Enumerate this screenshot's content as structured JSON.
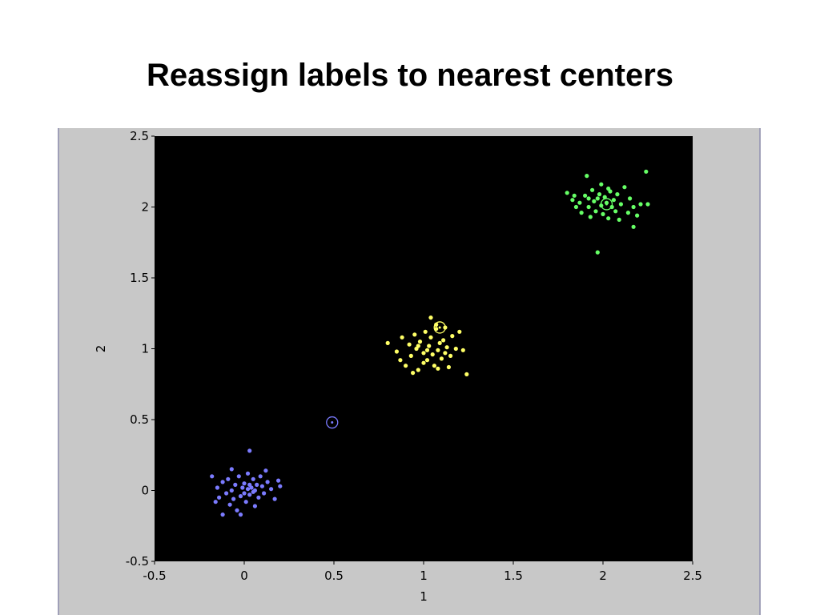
{
  "slide": {
    "title": "Reassign labels to nearest centers"
  },
  "colors": {
    "panel_bg": "#c8c8c8",
    "axes_bg": "#000000",
    "cluster_blue": "#7b7bff",
    "cluster_yellow": "#ffff66",
    "cluster_green": "#66ff66"
  },
  "chart_data": {
    "type": "scatter",
    "title": "",
    "xlabel": "1",
    "ylabel": "2",
    "xlim": [
      -0.5,
      2.5
    ],
    "ylim": [
      -0.5,
      2.5
    ],
    "xticks": [
      -0.5,
      0,
      0.5,
      1,
      1.5,
      2,
      2.5
    ],
    "yticks": [
      -0.5,
      0,
      0.5,
      1,
      1.5,
      2,
      2.5
    ],
    "xtick_labels": [
      "-0.5",
      "0",
      "0.5",
      "1",
      "1.5",
      "2",
      "2.5"
    ],
    "ytick_labels": [
      "-0.5",
      "0",
      "0.5",
      "1",
      "1.5",
      "2",
      "2.5"
    ],
    "grid": false,
    "legend": "none",
    "series": [
      {
        "color": "#7b7bff",
        "points": [
          [
            -0.18,
            0.1
          ],
          [
            -0.15,
            0.02
          ],
          [
            -0.14,
            -0.05
          ],
          [
            -0.12,
            0.06
          ],
          [
            -0.1,
            -0.02
          ],
          [
            -0.09,
            0.08
          ],
          [
            -0.08,
            -0.1
          ],
          [
            -0.07,
            0.0
          ],
          [
            -0.06,
            -0.06
          ],
          [
            -0.05,
            0.04
          ],
          [
            -0.04,
            -0.14
          ],
          [
            -0.03,
            0.1
          ],
          [
            -0.02,
            -0.04
          ],
          [
            -0.01,
            0.02
          ],
          [
            0.0,
            0.05
          ],
          [
            0.0,
            -0.02
          ],
          [
            0.01,
            -0.08
          ],
          [
            0.02,
            0.01
          ],
          [
            0.02,
            0.12
          ],
          [
            0.03,
            -0.03
          ],
          [
            0.03,
            0.04
          ],
          [
            0.04,
            0.02
          ],
          [
            0.05,
            -0.01
          ],
          [
            0.05,
            0.08
          ],
          [
            0.06,
            0.0
          ],
          [
            0.07,
            0.04
          ],
          [
            0.08,
            -0.05
          ],
          [
            0.09,
            0.1
          ],
          [
            0.1,
            0.03
          ],
          [
            0.11,
            -0.02
          ],
          [
            0.13,
            0.06
          ],
          [
            0.15,
            0.01
          ],
          [
            0.17,
            -0.06
          ],
          [
            0.19,
            0.07
          ],
          [
            0.2,
            0.03
          ],
          [
            0.03,
            0.28
          ],
          [
            -0.07,
            0.15
          ],
          [
            -0.02,
            -0.17
          ],
          [
            0.12,
            0.14
          ],
          [
            -0.16,
            -0.08
          ],
          [
            -0.12,
            -0.17
          ],
          [
            0.06,
            -0.11
          ]
        ]
      },
      {
        "color": "#ffff66",
        "points": [
          [
            0.8,
            1.04
          ],
          [
            0.85,
            0.98
          ],
          [
            0.87,
            0.92
          ],
          [
            0.88,
            1.08
          ],
          [
            0.9,
            0.88
          ],
          [
            0.92,
            1.03
          ],
          [
            0.93,
            0.95
          ],
          [
            0.95,
            1.1
          ],
          [
            0.96,
            1.0
          ],
          [
            0.97,
            0.85
          ],
          [
            0.98,
            1.05
          ],
          [
            1.0,
            0.97
          ],
          [
            1.01,
            1.12
          ],
          [
            1.02,
            0.92
          ],
          [
            1.03,
            1.02
          ],
          [
            1.04,
            1.08
          ],
          [
            1.05,
            0.96
          ],
          [
            1.06,
            0.88
          ],
          [
            1.07,
            1.14
          ],
          [
            1.08,
            0.99
          ],
          [
            1.09,
            1.04
          ],
          [
            1.1,
            0.93
          ],
          [
            1.11,
            1.06
          ],
          [
            1.12,
            0.97
          ],
          [
            1.13,
            1.01
          ],
          [
            1.14,
            0.87
          ],
          [
            1.15,
            0.95
          ],
          [
            1.16,
            1.09
          ],
          [
            1.18,
            1.0
          ],
          [
            1.2,
            1.12
          ],
          [
            1.22,
            0.99
          ],
          [
            1.24,
            0.82
          ],
          [
            1.04,
            1.22
          ],
          [
            1.07,
            1.17
          ],
          [
            0.94,
            0.83
          ],
          [
            1.0,
            0.9
          ],
          [
            1.08,
            0.86
          ],
          [
            1.12,
            1.15
          ],
          [
            1.02,
            0.99
          ],
          [
            0.97,
            1.02
          ]
        ]
      },
      {
        "color": "#66ff66",
        "points": [
          [
            1.8,
            2.1
          ],
          [
            1.83,
            2.05
          ],
          [
            1.85,
            2.0
          ],
          [
            1.87,
            2.03
          ],
          [
            1.88,
            1.96
          ],
          [
            1.9,
            2.08
          ],
          [
            1.91,
            2.22
          ],
          [
            1.92,
            2.0
          ],
          [
            1.93,
            1.93
          ],
          [
            1.94,
            2.12
          ],
          [
            1.95,
            2.04
          ],
          [
            1.96,
            1.97
          ],
          [
            1.97,
            2.06
          ],
          [
            1.98,
            2.09
          ],
          [
            1.99,
            2.01
          ],
          [
            2.0,
            1.95
          ],
          [
            2.01,
            2.07
          ],
          [
            2.02,
            2.03
          ],
          [
            2.03,
            1.92
          ],
          [
            2.04,
            2.11
          ],
          [
            2.05,
            2.0
          ],
          [
            2.06,
            2.05
          ],
          [
            2.07,
            1.97
          ],
          [
            2.08,
            2.09
          ],
          [
            2.1,
            2.02
          ],
          [
            2.12,
            2.14
          ],
          [
            2.14,
            1.96
          ],
          [
            2.15,
            2.06
          ],
          [
            2.17,
            2.0
          ],
          [
            2.19,
            1.94
          ],
          [
            2.21,
            2.02
          ],
          [
            2.24,
            2.25
          ],
          [
            2.25,
            2.02
          ],
          [
            1.97,
            1.68
          ],
          [
            2.17,
            1.86
          ],
          [
            1.84,
            2.08
          ],
          [
            2.03,
            2.13
          ],
          [
            1.92,
            2.06
          ],
          [
            2.09,
            1.91
          ],
          [
            1.99,
            2.16
          ]
        ]
      }
    ],
    "centers": [
      {
        "x": 0.49,
        "y": 0.48,
        "color": "#7b7bff"
      },
      {
        "x": 1.09,
        "y": 1.15,
        "color": "#ffff66"
      },
      {
        "x": 2.02,
        "y": 2.02,
        "color": "#66ff66"
      }
    ]
  }
}
